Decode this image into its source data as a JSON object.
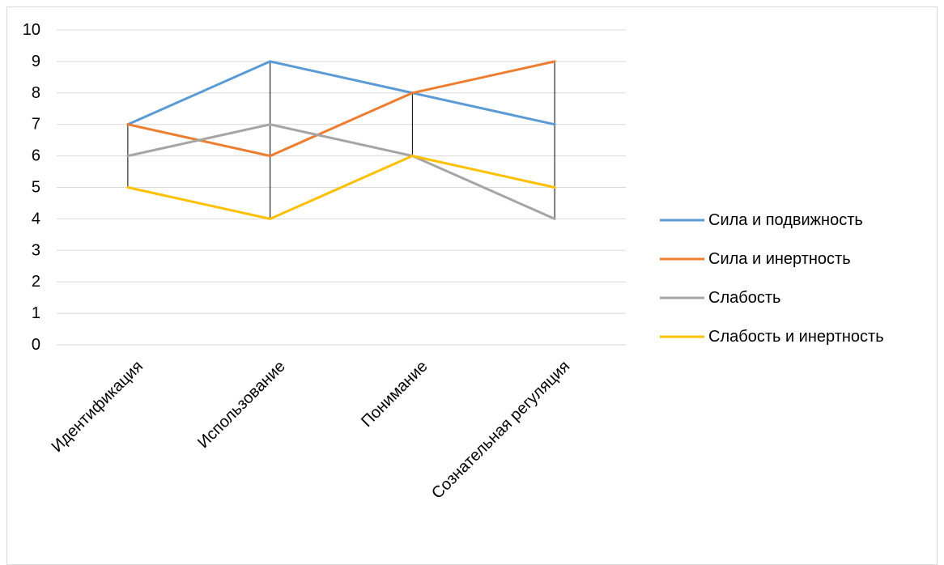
{
  "chart_data": {
    "type": "line",
    "title": "",
    "xlabel": "",
    "ylabel": "",
    "ylim": [
      0,
      10
    ],
    "yticks": [
      0,
      1,
      2,
      3,
      4,
      5,
      6,
      7,
      8,
      9,
      10
    ],
    "ytick_labels": [
      "0",
      "1",
      "2",
      "3",
      "4",
      "5",
      "6",
      "7",
      "8",
      "9",
      "10"
    ],
    "grid": "horizontal",
    "legend_position": "right",
    "high_low_lines": true,
    "categories": [
      "Идентификация",
      "Использование",
      "Понимание",
      "Сознательная регуляция"
    ],
    "series": [
      {
        "name": "Сила и подвижность",
        "color": "#5B9BD5",
        "values": [
          7,
          9,
          8,
          7
        ]
      },
      {
        "name": "Сила и инертность",
        "color": "#ED7D31",
        "values": [
          7,
          6,
          8,
          9
        ]
      },
      {
        "name": "Слабость",
        "color": "#A5A5A5",
        "values": [
          6,
          7,
          6,
          4
        ]
      },
      {
        "name": "Слабость и инертность",
        "color": "#FFC000",
        "values": [
          5,
          4,
          6,
          5
        ]
      }
    ]
  }
}
